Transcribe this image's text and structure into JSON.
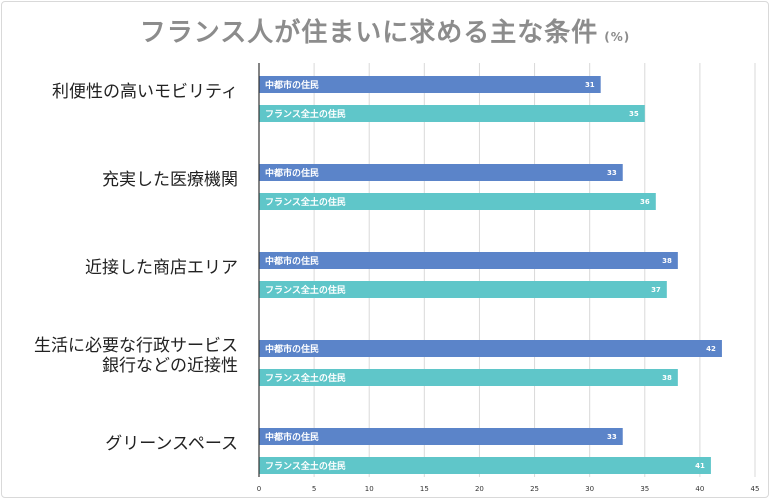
{
  "chart_data": {
    "type": "bar",
    "orientation": "horizontal",
    "title": "フランス人が住まいに求める主な条件",
    "unit": "(%)",
    "categories": [
      [
        "利便性の高いモビリティ"
      ],
      [
        "充実した医療機関"
      ],
      [
        "近接した商店エリア"
      ],
      [
        "生活に必要な行政サービス",
        "銀行などの近接性"
      ],
      [
        "グリーンスペース"
      ]
    ],
    "series": [
      {
        "name": "中都市の住民",
        "color": "#5b84c9",
        "values": [
          31,
          33,
          38,
          42,
          33
        ]
      },
      {
        "name": "フランス全土の住民",
        "color": "#5fc6c9",
        "values": [
          35,
          36,
          37,
          38,
          41
        ]
      }
    ],
    "xlim": [
      0,
      45
    ],
    "xticks": [
      0,
      5,
      10,
      15,
      20,
      25,
      30,
      35,
      40,
      45
    ],
    "grid": true,
    "legend": "none",
    "xlabel": "",
    "ylabel": ""
  }
}
